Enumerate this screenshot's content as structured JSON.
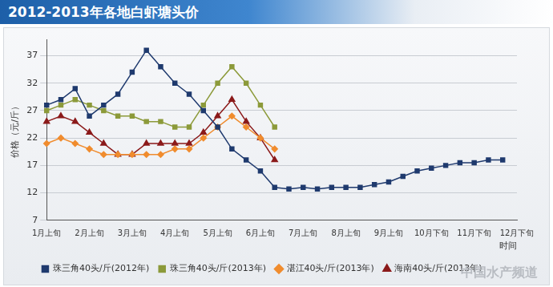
{
  "chart_data": {
    "type": "line",
    "title": "2012-2013年各地白虾塘头价",
    "y_label": "价格（元/斤）",
    "x_label": "时间",
    "annotations": [
      "中国水产频道"
    ],
    "categories": [
      "1月上旬",
      null,
      null,
      "2月上旬",
      null,
      null,
      "3月上旬",
      null,
      null,
      "4月上旬",
      null,
      null,
      "5月上旬",
      null,
      null,
      "6月上旬",
      null,
      null,
      "7月上旬",
      null,
      null,
      "8月上旬",
      null,
      null,
      "9月上旬",
      null,
      null,
      "10月下旬",
      null,
      null,
      "11月下旬",
      null,
      null,
      "12月下旬"
    ],
    "series": [
      {
        "name": "珠三角40头/斤(2012年)",
        "color": "#1f3a6e",
        "marker": "square",
        "line_style": "solid",
        "values": [
          28,
          29,
          31,
          26,
          28,
          30,
          34,
          38,
          35,
          32,
          30,
          27,
          24,
          20,
          18,
          16,
          13,
          12.7,
          13,
          12.7,
          13,
          13,
          13,
          13.5,
          14,
          15,
          16,
          16.5,
          17,
          17.5,
          17.5,
          18,
          18,
          null
        ]
      },
      {
        "name": "珠三角40头/斤(2013年)",
        "color": "#8c9a3a",
        "marker": "square",
        "line_style": "solid",
        "values": [
          27,
          28,
          29,
          28,
          27,
          26,
          26,
          25,
          25,
          24,
          24,
          28,
          32,
          35,
          32,
          28,
          24,
          null,
          null,
          null,
          null,
          null,
          null,
          null,
          null,
          null,
          null,
          null,
          null,
          null,
          null,
          null,
          null,
          null
        ]
      },
      {
        "name": "湛江40头/斤(2013年)",
        "color": "#f08c2e",
        "marker": "diamond",
        "line_style": "solid",
        "values": [
          21,
          22,
          21,
          20,
          19,
          19,
          19,
          19,
          19,
          20,
          20,
          22,
          24,
          26,
          24,
          22,
          20,
          null,
          null,
          null,
          null,
          null,
          null,
          null,
          null,
          null,
          null,
          null,
          null,
          null,
          null,
          null,
          null,
          null
        ]
      },
      {
        "name": "海南40头/斤(2013年)",
        "color": "#8b1a1a",
        "marker": "triangle",
        "line_style": "solid",
        "values": [
          25,
          26,
          25,
          23,
          21,
          19,
          19,
          21,
          21,
          21,
          21,
          23,
          26,
          29,
          25,
          22,
          18,
          null,
          null,
          null,
          null,
          null,
          null,
          null,
          null,
          null,
          null,
          null,
          null,
          null,
          null,
          null,
          null,
          null
        ]
      }
    ],
    "ylim": [
      7,
      40
    ],
    "yticks": [
      7,
      12,
      17,
      22,
      27,
      32,
      37
    ],
    "grid": true,
    "legend": "bottom"
  }
}
